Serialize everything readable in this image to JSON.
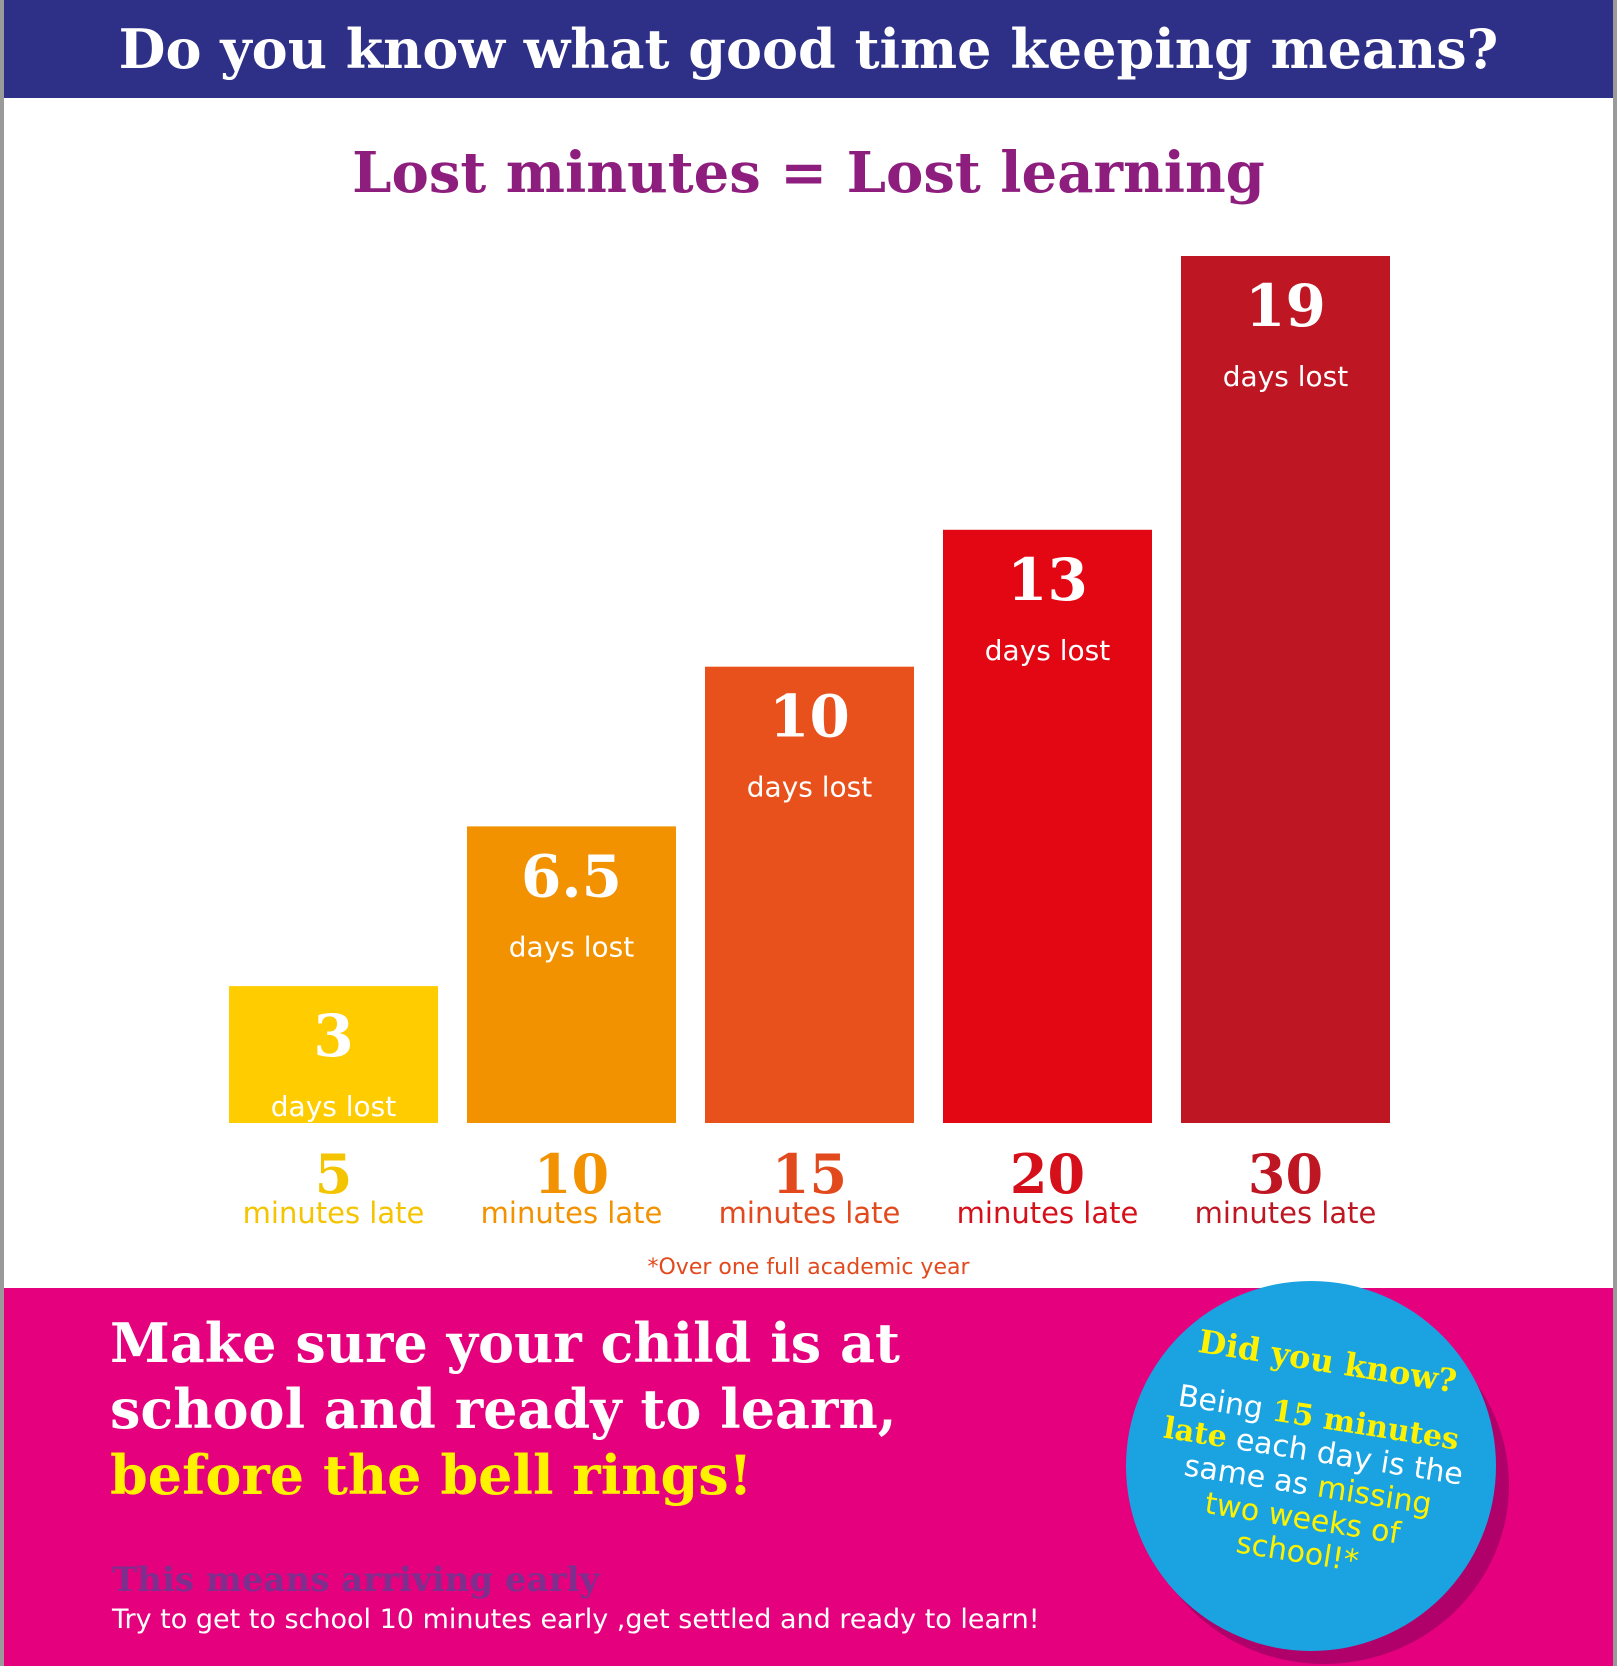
{
  "header": {
    "title": "Do you know what good time keeping means?"
  },
  "chart_data": {
    "type": "bar",
    "title": "Lost minutes = Lost learning",
    "categories": [
      "5",
      "10",
      "15",
      "20",
      "30"
    ],
    "category_unit": "minutes late",
    "values": [
      3,
      6.5,
      10,
      13,
      19
    ],
    "value_labels": [
      "3",
      "6.5",
      "10",
      "13",
      "19"
    ],
    "value_unit": "days lost",
    "colors": [
      "#ffcc00",
      "#f29200",
      "#e9511c",
      "#e30613",
      "#be1622"
    ],
    "category_colors": [
      "#f5c400",
      "#f29200",
      "#e24a1e",
      "#d5101a",
      "#be1622"
    ],
    "footnote": "*Over one full academic year",
    "ylim": [
      0,
      19
    ],
    "grid": false
  },
  "cta": {
    "line1": "Make sure your child is at",
    "line2": "school and ready to learn,",
    "line3": "before the bell rings!"
  },
  "early": {
    "heading": "This means arriving early",
    "text": "Try to get to school 10 minutes early ,get settled and ready to learn!"
  },
  "bubble": {
    "title": "Did you know?",
    "part1": "Being ",
    "highlight": "15 minutes late",
    "part2": " each day is the same as ",
    "part3": "missing two weeks of school!*"
  }
}
